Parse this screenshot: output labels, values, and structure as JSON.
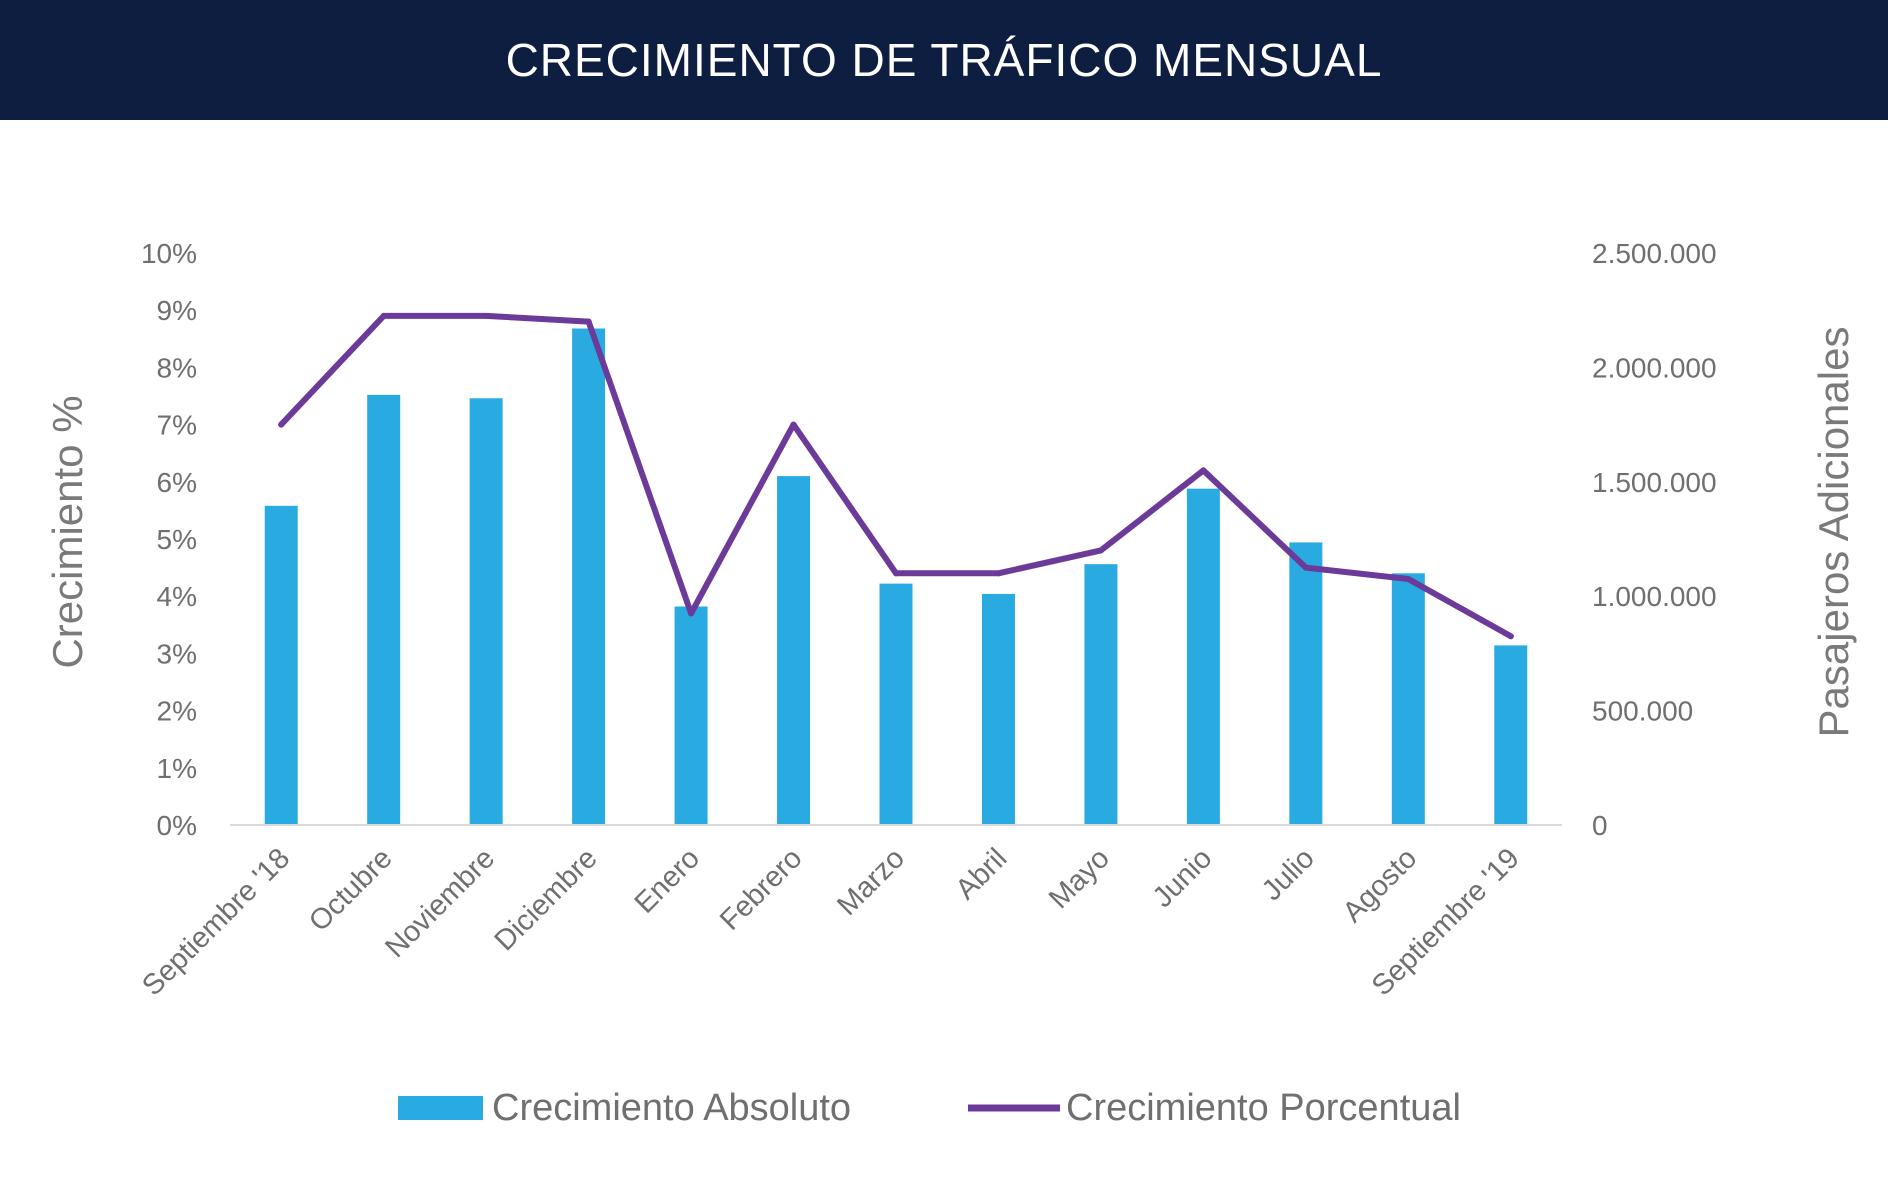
{
  "header": {
    "title": "CRECIMIENTO DE TRÁFICO MENSUAL"
  },
  "colors": {
    "header_bg": "#0e1e41",
    "bar": "#29abe2",
    "line": "#6c3a98",
    "axis": "#d9d9d9",
    "text": "#6f6f6f"
  },
  "chart_data": {
    "type": "bar",
    "title": "CRECIMIENTO DE TRÁFICO MENSUAL",
    "categories": [
      "Septiembre '18",
      "Octubre",
      "Noviembre",
      "Diciembre",
      "Enero",
      "Febrero",
      "Marzo",
      "Abril",
      "Mayo",
      "Junio",
      "Julio",
      "Agosto",
      "Septiembre '19"
    ],
    "series": [
      {
        "name": "Crecimiento Absoluto",
        "type": "bar",
        "axis": "right",
        "values": [
          1395000,
          1880000,
          1865000,
          2170000,
          955000,
          1525000,
          1055000,
          1010000,
          1140000,
          1470000,
          1235000,
          1100000,
          785000
        ]
      },
      {
        "name": "Crecimiento Porcentual",
        "type": "line",
        "axis": "left",
        "values": [
          7.0,
          8.9,
          8.9,
          8.8,
          3.7,
          7.0,
          4.4,
          4.4,
          4.8,
          6.2,
          4.5,
          4.3,
          3.3
        ]
      }
    ],
    "ylabel": "Crecimiento %",
    "y2label": "Pasajeros Adicionales",
    "ylim": [
      0,
      10
    ],
    "y2lim": [
      0,
      2500000
    ],
    "yticks": [
      "0%",
      "1%",
      "2%",
      "3%",
      "4%",
      "5%",
      "6%",
      "7%",
      "8%",
      "9%",
      "10%"
    ],
    "y2ticks": [
      "0",
      "500.000",
      "1.000.000",
      "1.500.000",
      "2.000.000",
      "2.500.000"
    ],
    "grid": false,
    "legend_position": "bottom"
  }
}
